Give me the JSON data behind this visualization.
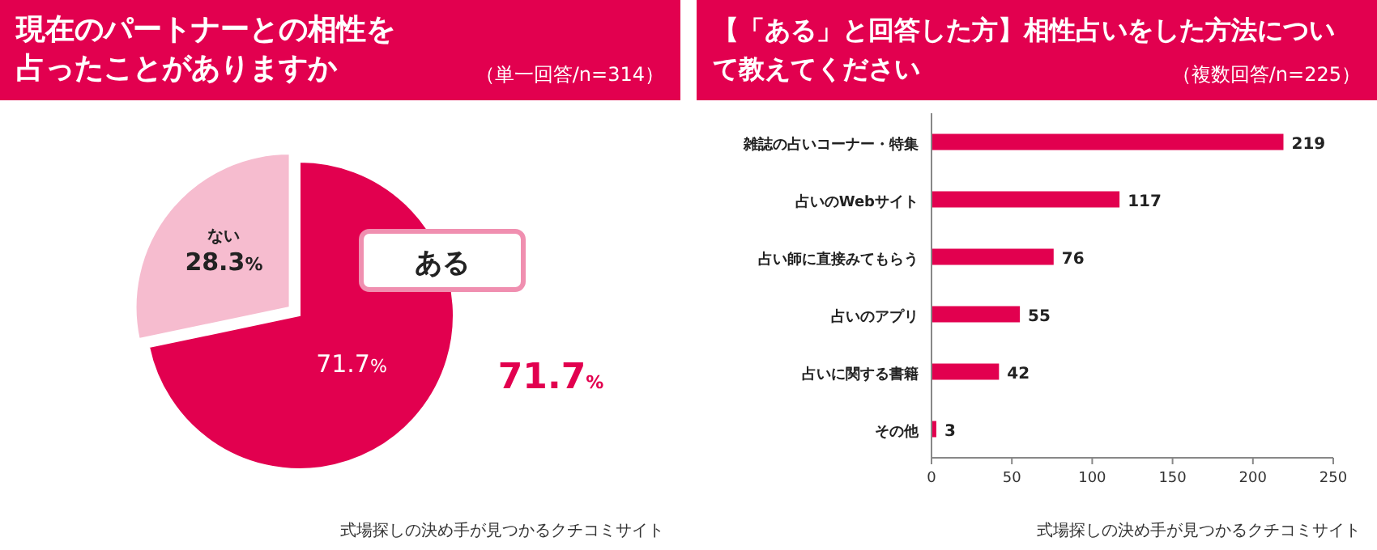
{
  "chart_data": [
    {
      "type": "pie",
      "title": "現在のパートナーとの相性を占ったことがありますか",
      "subtitle": "（単一回答/n=314）",
      "categories": [
        "ある",
        "ない"
      ],
      "values": [
        71.7,
        28.3
      ],
      "colors": [
        "#e2004f",
        "#f6bccf"
      ],
      "value_labels": [
        "71.7%",
        "28.3%"
      ],
      "annotations": [
        "71.7%",
        "式場探しの決め手が見つかるクチコミサイト"
      ]
    },
    {
      "type": "bar",
      "orientation": "horizontal",
      "title": "【「ある」と回答した方】相性占いをした方法について教えてください",
      "subtitle": "（複数回答/n=225）",
      "categories": [
        "雑誌の占いコーナー・特集",
        "占いのWebサイト",
        "占い師に直接みてもらう",
        "占いのアプリ",
        "占いに関する書籍",
        "その他"
      ],
      "values": [
        219,
        117,
        76,
        55,
        42,
        3
      ],
      "color": "#e2004f",
      "xlim": [
        0,
        250
      ],
      "xticks": [
        0,
        50,
        100,
        150,
        200,
        250
      ],
      "data_labels": true,
      "grid": false,
      "annotations": [
        "式場探しの決め手が見つかるクチコミサイト"
      ]
    }
  ]
}
